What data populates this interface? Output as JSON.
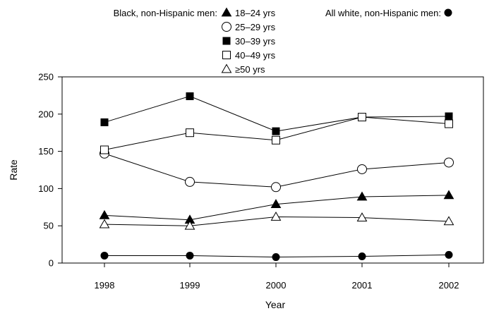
{
  "chart_data": {
    "type": "line",
    "title": "",
    "xlabel": "Year",
    "ylabel": "Rate",
    "ylim": [
      0,
      250
    ],
    "yticks": [
      "0",
      "50",
      "100",
      "150",
      "200",
      "250"
    ],
    "categories": [
      "1998",
      "1999",
      "2000",
      "2001",
      "2002"
    ],
    "grid": false,
    "legend": {
      "placement": "top",
      "group_black_label": "Black, non-Hispanic men:",
      "group_white_label": "All white, non-Hispanic men:"
    },
    "series": [
      {
        "name": "18–24 yrs",
        "group": "black",
        "marker": "triangle-filled",
        "values": [
          64,
          58,
          79,
          89,
          91
        ]
      },
      {
        "name": "25–29 yrs",
        "group": "black",
        "marker": "circle-open",
        "values": [
          147,
          109,
          102,
          126,
          135
        ]
      },
      {
        "name": "30–39 yrs",
        "group": "black",
        "marker": "square-filled",
        "values": [
          189,
          224,
          177,
          196,
          197
        ]
      },
      {
        "name": "40–49 yrs",
        "group": "black",
        "marker": "square-open",
        "values": [
          152,
          175,
          165,
          196,
          187
        ]
      },
      {
        "name": "≥50 yrs",
        "group": "black",
        "marker": "triangle-open",
        "values": [
          52,
          50,
          62,
          61,
          56
        ]
      },
      {
        "name": "",
        "group": "white",
        "marker": "circle-filled",
        "values": [
          10,
          10,
          8,
          9,
          11
        ]
      }
    ]
  }
}
